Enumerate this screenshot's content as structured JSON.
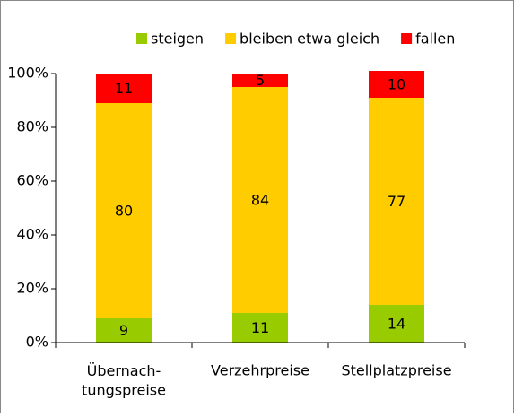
{
  "chart_data": {
    "type": "stacked-bar",
    "categories": [
      "Übernach-\ntungspreise",
      "Verzehrpreise",
      "Stellplatzpreise"
    ],
    "series": [
      {
        "name": "steigen",
        "color": "#99cc00",
        "values": [
          9,
          11,
          14
        ]
      },
      {
        "name": "bleiben etwa gleich",
        "color": "#ffcc00",
        "values": [
          80,
          84,
          77
        ]
      },
      {
        "name": "fallen",
        "color": "#ff0000",
        "values": [
          11,
          5,
          10
        ]
      }
    ],
    "ylim": [
      0,
      100
    ],
    "yticks": [
      {
        "value": 0,
        "label": "0%"
      },
      {
        "value": 20,
        "label": "20%"
      },
      {
        "value": 40,
        "label": "40%"
      },
      {
        "value": 60,
        "label": "60%"
      },
      {
        "value": 80,
        "label": "80%"
      },
      {
        "value": 100,
        "label": "100%"
      }
    ],
    "legend": "top"
  }
}
